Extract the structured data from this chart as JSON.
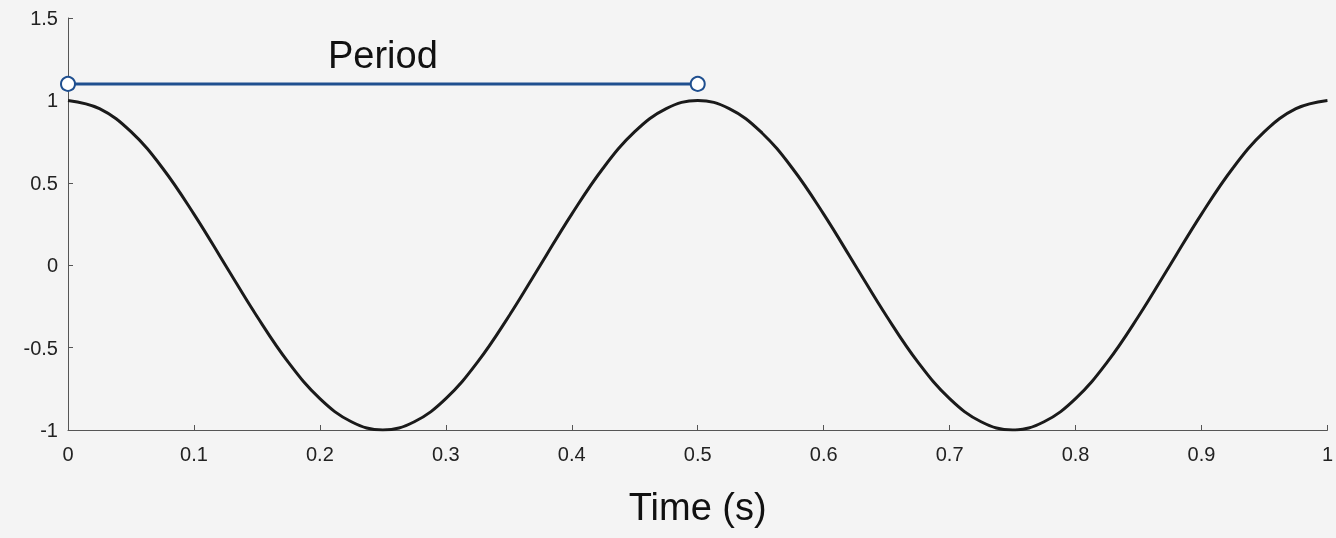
{
  "chart_data": {
    "type": "line",
    "xlabel": "Time (s)",
    "xlim": [
      0,
      1
    ],
    "ylim": [
      -1,
      1.5
    ],
    "xticks": [
      0,
      0.1,
      0.2,
      0.3,
      0.4,
      0.5,
      0.6,
      0.7,
      0.8,
      0.9,
      1
    ],
    "yticks": [
      -1,
      -0.5,
      0,
      0.5,
      1,
      1.5
    ],
    "grid": false,
    "legend": false,
    "series": [
      {
        "color": "#1a1a1a",
        "marker": "none",
        "x": [
          0,
          0.025,
          0.05,
          0.075,
          0.1,
          0.125,
          0.15,
          0.175,
          0.2,
          0.225,
          0.25,
          0.275,
          0.3,
          0.325,
          0.35,
          0.375,
          0.4,
          0.425,
          0.45,
          0.475,
          0.5,
          0.525,
          0.55,
          0.575,
          0.6,
          0.625,
          0.65,
          0.675,
          0.7,
          0.725,
          0.75,
          0.775,
          0.8,
          0.825,
          0.85,
          0.875,
          0.9,
          0.925,
          0.95,
          0.975,
          1
        ],
        "values": [
          1,
          0.95,
          0.81,
          0.59,
          0.31,
          0,
          -0.31,
          -0.59,
          -0.81,
          -0.95,
          -1,
          -0.95,
          -0.81,
          -0.59,
          -0.31,
          0,
          0.31,
          0.59,
          0.81,
          0.95,
          1,
          0.95,
          0.81,
          0.59,
          0.31,
          0,
          -0.31,
          -0.59,
          -0.81,
          -0.95,
          -1,
          -0.95,
          -0.81,
          -0.59,
          -0.31,
          0,
          0.31,
          0.59,
          0.81,
          0.95,
          1
        ]
      },
      {
        "name": "Period",
        "color": "#1f4f8f",
        "marker": "circle",
        "x": [
          0,
          0.5
        ],
        "values": [
          1.1,
          1.1
        ]
      }
    ]
  }
}
